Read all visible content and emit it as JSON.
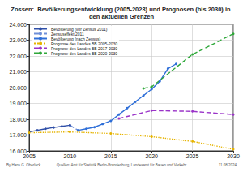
{
  "chart_data": {
    "type": "line",
    "title": "Zossen:  Bevölkerungsentwicklung (2005-2023) und Prognosen (bis 2030) in den aktuellen Grenzen",
    "footer": [
      "By Hans G. Oberlack",
      "Quellen: Amt für Statistik Berlin-Brandenburg, Landesamt für Bauen und Verkehr",
      "11.08.2024"
    ],
    "xlim": [
      2005,
      2030
    ],
    "xticks": [
      2005,
      2010,
      2015,
      2020,
      2025,
      2030
    ],
    "ylim": [
      16000,
      24000
    ],
    "yticks": [
      {
        "value": 16000,
        "label": "16.000"
      },
      {
        "value": 17000,
        "label": "17.000"
      },
      {
        "value": 18000,
        "label": "18.000"
      },
      {
        "value": 19000,
        "label": "19.000"
      },
      {
        "value": 20000,
        "label": "20.000"
      },
      {
        "value": 21000,
        "label": "21.000"
      },
      {
        "value": 22000,
        "label": "22.000"
      },
      {
        "value": 23000,
        "label": "23.000"
      },
      {
        "value": 24000,
        "label": "24.000"
      }
    ],
    "grid": true,
    "legend": "upper left",
    "series": [
      {
        "name": "Bevölkerung (vor Zensus 2011)",
        "color": "#2f4fa8",
        "line_style": "solid",
        "marker": "circle",
        "x": [
          2005,
          2006,
          2007,
          2008,
          2009,
          2010
        ],
        "values": [
          17200,
          17300,
          17400,
          17480,
          17550,
          17620
        ]
      },
      {
        "name": "Zensuseffekt 2011",
        "color": "#6f8fd8",
        "line_style": "dashed",
        "marker": "none",
        "x": [
          2010,
          2011
        ],
        "values": [
          17620,
          17300
        ]
      },
      {
        "name": "Bevölkerung (nach Zensus)",
        "color": "#2f6fd8",
        "line_style": "solid",
        "marker": "circle",
        "x": [
          2011,
          2012,
          2013,
          2014,
          2015,
          2016,
          2017,
          2018,
          2019,
          2020,
          2021,
          2022,
          2023
        ],
        "values": [
          17300,
          17400,
          17500,
          17700,
          17900,
          18300,
          18700,
          19100,
          19500,
          19900,
          20400,
          21200,
          21500
        ]
      },
      {
        "name": "Prognose des Landes BB 2005-2030",
        "color": "#e6b400",
        "line_style": "dotted",
        "marker": "circle",
        "x": [
          2005,
          2010,
          2015,
          2020,
          2025,
          2030
        ],
        "values": [
          17150,
          17200,
          17100,
          16900,
          16600,
          16100
        ]
      },
      {
        "name": "Prognose des Landes BB 2017-2030",
        "color": "#9a33c8",
        "line_style": "dashed",
        "marker": "circle",
        "x": [
          2016,
          2020,
          2025,
          2030
        ],
        "values": [
          18050,
          18550,
          18500,
          18300
        ]
      },
      {
        "name": "Prognose des Landes BB 2020-2030",
        "color": "#2fa83a",
        "line_style": "dashed",
        "marker": "circle",
        "x": [
          2019,
          2020,
          2025,
          2030
        ],
        "values": [
          19950,
          20050,
          22100,
          23400
        ]
      }
    ]
  }
}
